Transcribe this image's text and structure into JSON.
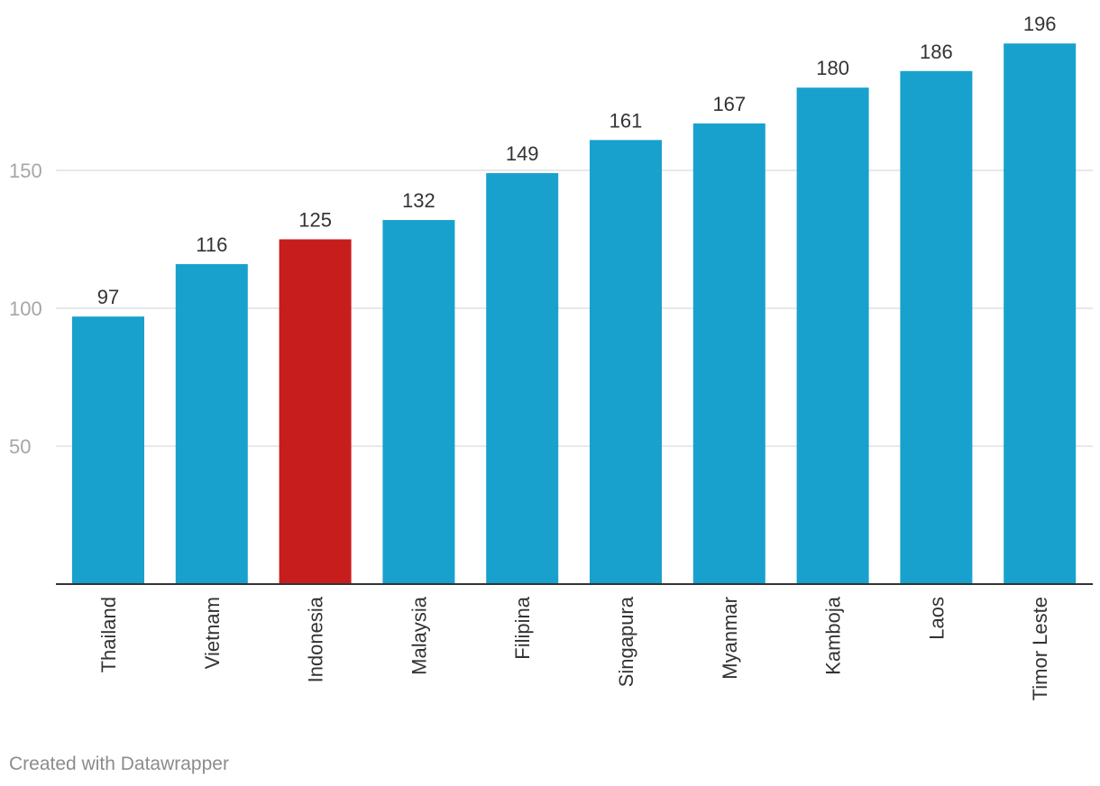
{
  "chart_data": {
    "type": "bar",
    "categories": [
      "Thailand",
      "Vietnam",
      "Indonesia",
      "Malaysia",
      "Filipina",
      "Singapura",
      "Myanmar",
      "Kamboja",
      "Laos",
      "Timor Leste"
    ],
    "values": [
      97,
      116,
      125,
      132,
      149,
      161,
      167,
      180,
      186,
      196
    ],
    "highlight_index": 2,
    "colors": {
      "bar": "#18a1cd",
      "highlight": "#c71e1d",
      "gridline": "#e0e0e0",
      "baseline": "#333333",
      "tick_label": "#a6a6a6",
      "value_label": "#333333",
      "category_label": "#333333"
    },
    "y_ticks": [
      50,
      100,
      150
    ],
    "ylim": [
      0,
      200
    ],
    "grid": true,
    "title": "",
    "xlabel": "",
    "ylabel": ""
  },
  "footer": {
    "credit": "Created with Datawrapper"
  }
}
